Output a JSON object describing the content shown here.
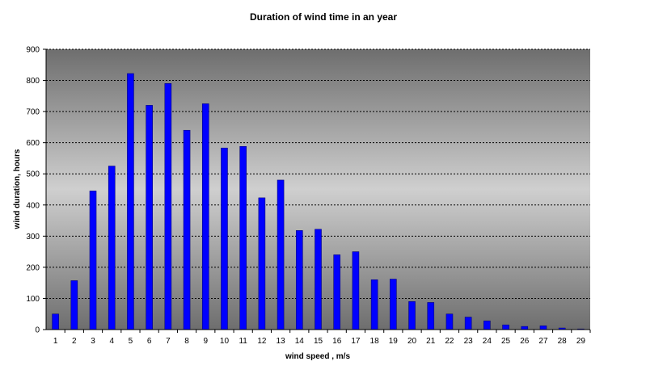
{
  "chart_data": {
    "type": "bar",
    "title": "Duration of wind time in an year",
    "xlabel": "wind speed ,  m/s",
    "ylabel": "wind duration, hours",
    "categories": [
      "1",
      "2",
      "3",
      "4",
      "5",
      "6",
      "7",
      "8",
      "9",
      "10",
      "11",
      "12",
      "13",
      "14",
      "15",
      "16",
      "17",
      "18",
      "19",
      "20",
      "21",
      "22",
      "23",
      "24",
      "25",
      "26",
      "27",
      "28",
      "29"
    ],
    "values": [
      50,
      157,
      445,
      525,
      822,
      720,
      790,
      640,
      725,
      583,
      588,
      423,
      480,
      318,
      322,
      240,
      250,
      160,
      162,
      90,
      87,
      50,
      40,
      28,
      15,
      10,
      12,
      5,
      2
    ],
    "ylim": [
      0,
      900
    ],
    "yticks": [
      "0",
      "100",
      "200",
      "300",
      "400",
      "500",
      "600",
      "700",
      "800",
      "900"
    ],
    "grid": true,
    "legend": "none",
    "colors": {
      "bar": "#0000ff",
      "bar_edge": "#000080",
      "plot_dark": "#6e6e6e",
      "plot_light": "#cfcfcf"
    }
  }
}
